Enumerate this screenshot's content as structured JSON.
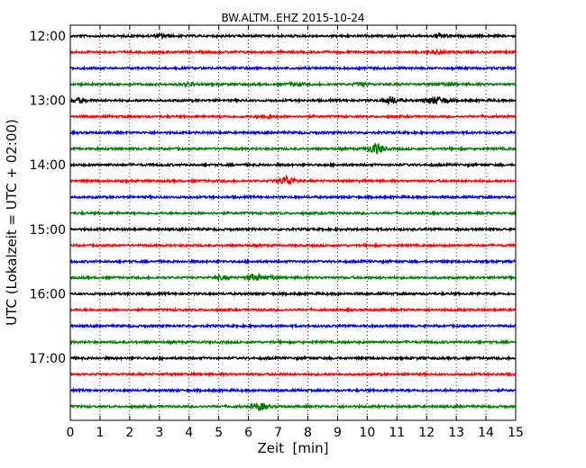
{
  "chart_data": {
    "type": "line",
    "title": "BW.ALTM..EHZ 2015-10-24",
    "xlabel": "Zeit  [min]",
    "ylabel": "UTC (Lokalzeit = UTC + 02:00)",
    "xlim": [
      0,
      15
    ],
    "x_ticks": [
      "0",
      "1",
      "2",
      "3",
      "4",
      "5",
      "6",
      "7",
      "8",
      "9",
      "10",
      "11",
      "12",
      "13",
      "14",
      "15"
    ],
    "y_ticks": [
      "12:00",
      "13:00",
      "14:00",
      "15:00",
      "16:00",
      "17:00"
    ],
    "grid": "vertical dotted",
    "trace_interval_minutes": 15,
    "color_cycle": [
      "#000000",
      "#ff0000",
      "#0000ff",
      "#008000"
    ],
    "traces": [
      {
        "start": "12:00",
        "color": "#000000",
        "events": [
          {
            "minute": 3.1,
            "amp": 1.4
          },
          {
            "minute": 12.5,
            "amp": 1.3
          }
        ]
      },
      {
        "start": "12:15",
        "color": "#ff0000",
        "events": [
          {
            "minute": 12.4,
            "amp": 1.3
          }
        ]
      },
      {
        "start": "12:30",
        "color": "#0000ff",
        "events": []
      },
      {
        "start": "12:45",
        "color": "#008000",
        "events": [
          {
            "minute": 4.0,
            "amp": 1.6
          },
          {
            "minute": 7.6,
            "amp": 1.5
          },
          {
            "minute": 9.8,
            "amp": 1.4
          },
          {
            "minute": 12.7,
            "amp": 1.4
          }
        ]
      },
      {
        "start": "13:00",
        "color": "#000000",
        "events": [
          {
            "minute": 0.3,
            "amp": 2.2
          },
          {
            "minute": 10.8,
            "amp": 3.5
          },
          {
            "minute": 12.2,
            "amp": 3.0
          },
          {
            "minute": 12.6,
            "amp": 2.0
          }
        ]
      },
      {
        "start": "13:15",
        "color": "#ff0000",
        "events": [
          {
            "minute": 6.6,
            "amp": 1.3
          }
        ]
      },
      {
        "start": "13:30",
        "color": "#0000ff",
        "events": []
      },
      {
        "start": "13:45",
        "color": "#008000",
        "events": [
          {
            "minute": 10.3,
            "amp": 5.5
          }
        ]
      },
      {
        "start": "14:00",
        "color": "#000000",
        "events": []
      },
      {
        "start": "14:15",
        "color": "#ff0000",
        "events": [
          {
            "minute": 7.3,
            "amp": 5.0
          }
        ]
      },
      {
        "start": "14:30",
        "color": "#0000ff",
        "events": []
      },
      {
        "start": "14:45",
        "color": "#008000",
        "events": []
      },
      {
        "start": "15:00",
        "color": "#000000",
        "events": []
      },
      {
        "start": "15:15",
        "color": "#ff0000",
        "events": []
      },
      {
        "start": "15:30",
        "color": "#0000ff",
        "events": []
      },
      {
        "start": "15:45",
        "color": "#008000",
        "events": [
          {
            "minute": 5.1,
            "amp": 1.6
          },
          {
            "minute": 6.2,
            "amp": 3.0
          },
          {
            "minute": 6.8,
            "amp": 1.8
          }
        ]
      },
      {
        "start": "16:00",
        "color": "#000000",
        "events": []
      },
      {
        "start": "16:15",
        "color": "#ff0000",
        "events": []
      },
      {
        "start": "16:30",
        "color": "#0000ff",
        "events": []
      },
      {
        "start": "16:45",
        "color": "#008000",
        "events": []
      },
      {
        "start": "17:00",
        "color": "#000000",
        "events": []
      },
      {
        "start": "17:15",
        "color": "#ff0000",
        "events": []
      },
      {
        "start": "17:30",
        "color": "#0000ff",
        "events": []
      },
      {
        "start": "17:45",
        "color": "#008000",
        "events": [
          {
            "minute": 6.4,
            "amp": 3.5
          }
        ]
      }
    ]
  }
}
